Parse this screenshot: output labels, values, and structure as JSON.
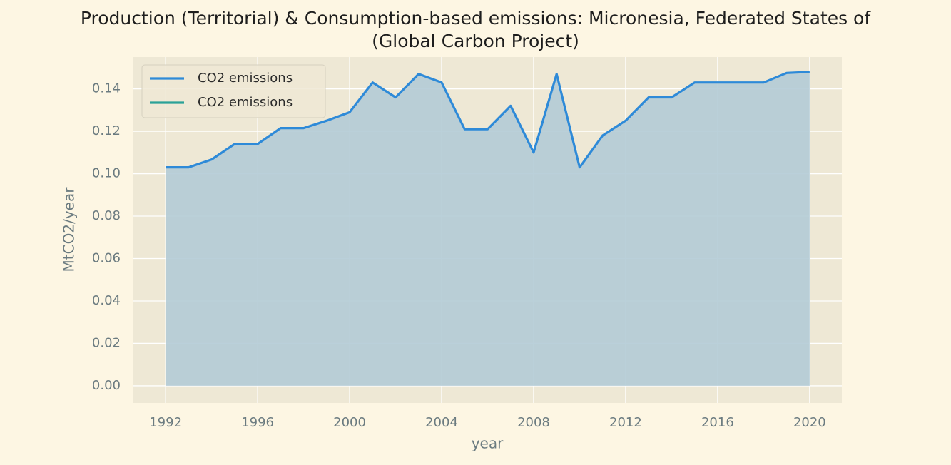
{
  "chart_data": {
    "type": "line",
    "title": "Production (Territorial) & Consumption-based emissions: Micronesia, Federated States of\n(Global Carbon Project)",
    "xlabel": "year",
    "ylabel": "MtCO2/year",
    "x": [
      1992,
      1993,
      1994,
      1995,
      1996,
      1997,
      1998,
      1999,
      2000,
      2001,
      2002,
      2003,
      2004,
      2005,
      2006,
      2007,
      2008,
      2009,
      2010,
      2011,
      2012,
      2013,
      2014,
      2015,
      2016,
      2017,
      2018,
      2019,
      2020
    ],
    "series": [
      {
        "name": "CO2 emissions",
        "color": "#2e8ad8",
        "fill": "#b3cbd6",
        "values": [
          0.103,
          0.103,
          0.1067,
          0.114,
          0.114,
          0.1215,
          0.1215,
          0.125,
          0.129,
          0.143,
          0.136,
          0.147,
          0.143,
          0.121,
          0.121,
          0.132,
          0.11,
          0.147,
          0.103,
          0.118,
          0.125,
          0.136,
          0.136,
          0.143,
          0.143,
          0.143,
          0.143,
          0.1475,
          0.148
        ]
      },
      {
        "name": "CO2 emissions",
        "color": "#2aa198",
        "values": [
          null,
          null,
          null,
          null,
          null,
          null,
          null,
          null,
          null,
          null,
          null,
          null,
          null,
          null,
          null,
          null,
          null,
          null,
          null,
          null,
          null,
          null,
          null,
          null,
          null,
          null,
          null,
          null,
          null
        ]
      }
    ],
    "xlim": [
      1990.6,
      2021.4
    ],
    "ylim": [
      -0.0081,
      0.155
    ],
    "xticks": [
      1992,
      1996,
      2000,
      2004,
      2008,
      2012,
      2016,
      2020
    ],
    "yticks": [
      {
        "value": 0,
        "label": "0.00"
      },
      0.02,
      0.04,
      0.06,
      0.08,
      {
        "value": 0.1,
        "label": "0.10"
      },
      0.12,
      0.14
    ],
    "grid": true,
    "legend": "upper left"
  }
}
